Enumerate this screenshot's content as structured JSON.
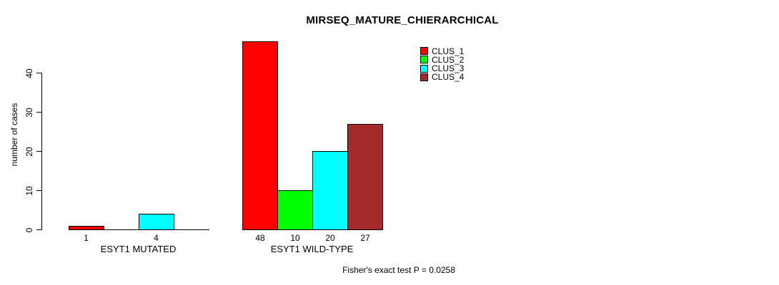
{
  "chart_data": {
    "type": "bar",
    "title": "MIRSEQ_MATURE_CHIERARCHICAL",
    "ylabel": "number of cases",
    "yticks": [
      0,
      10,
      20,
      30,
      40
    ],
    "ylim": [
      0,
      48
    ],
    "grid": false,
    "legend_position": "top-right",
    "series": [
      {
        "name": "CLUS_1",
        "color": "#FF0000"
      },
      {
        "name": "CLUS_2",
        "color": "#00FF00"
      },
      {
        "name": "CLUS_3",
        "color": "#00FFFF"
      },
      {
        "name": "CLUS_4",
        "color": "#A52A2A"
      }
    ],
    "groups": [
      {
        "label": "ESYT1 MUTATED",
        "values": [
          1,
          0,
          4,
          0
        ],
        "bar_labels": [
          "1",
          "",
          "4",
          ""
        ]
      },
      {
        "label": "ESYT1 WILD-TYPE",
        "values": [
          48,
          10,
          20,
          27
        ],
        "bar_labels": [
          "48",
          "10",
          "20",
          "27"
        ]
      }
    ],
    "footnote": "Fisher's exact test P = 0.0258"
  }
}
